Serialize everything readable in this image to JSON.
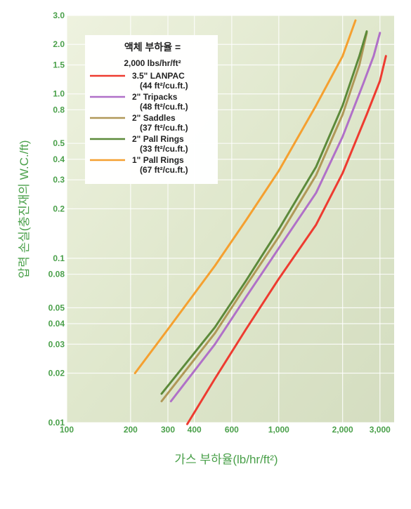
{
  "chart_data": {
    "type": "line",
    "xlabel": "가스 부하율(lb/hr/ft²)",
    "ylabel": "압력 손실(충진재의 W.C./ft)",
    "x_scale": "log",
    "y_scale": "log",
    "xlim": [
      100,
      3500
    ],
    "ylim": [
      0.01,
      3.0
    ],
    "x_ticks": [
      {
        "value": 100,
        "label": "100"
      },
      {
        "value": 200,
        "label": "200"
      },
      {
        "value": 300,
        "label": "300"
      },
      {
        "value": 400,
        "label": "400"
      },
      {
        "value": 600,
        "label": "600"
      },
      {
        "value": 1000,
        "label": "1,000"
      },
      {
        "value": 2000,
        "label": "2,000"
      },
      {
        "value": 3000,
        "label": "3,000"
      }
    ],
    "y_ticks": [
      {
        "value": 3.0,
        "label": "3.0"
      },
      {
        "value": 2.0,
        "label": "2.0"
      },
      {
        "value": 1.5,
        "label": "1.5"
      },
      {
        "value": 1.0,
        "label": "1.0"
      },
      {
        "value": 0.8,
        "label": "0.8"
      },
      {
        "value": 0.5,
        "label": "0.5"
      },
      {
        "value": 0.4,
        "label": "0.4"
      },
      {
        "value": 0.3,
        "label": "0.3"
      },
      {
        "value": 0.2,
        "label": "0.2"
      },
      {
        "value": 0.1,
        "label": "0.1"
      },
      {
        "value": 0.08,
        "label": "0.08"
      },
      {
        "value": 0.05,
        "label": "0.05"
      },
      {
        "value": 0.04,
        "label": "0.04"
      },
      {
        "value": 0.03,
        "label": "0.03"
      },
      {
        "value": 0.02,
        "label": "0.02"
      },
      {
        "value": 0.01,
        "label": "0.01"
      }
    ],
    "grid": true,
    "legend": {
      "title_line1": "액체 부하율 =",
      "title_line2": "2,000 lbs/hr/ft²",
      "position": "top-left"
    },
    "series": [
      {
        "name": "3.5\" LANPAC",
        "subtitle": "(44 ft²/cu.ft.)",
        "color": "#ee3b30",
        "points": [
          [
            370,
            0.0098
          ],
          [
            500,
            0.0185
          ],
          [
            700,
            0.037
          ],
          [
            1000,
            0.075
          ],
          [
            1500,
            0.16
          ],
          [
            2000,
            0.33
          ],
          [
            2600,
            0.75
          ],
          [
            3000,
            1.2
          ],
          [
            3200,
            1.7
          ]
        ]
      },
      {
        "name": "2\" Tripacks",
        "subtitle": "(48 ft²/cu.ft.)",
        "color": "#b070c8",
        "points": [
          [
            310,
            0.0135
          ],
          [
            500,
            0.03
          ],
          [
            700,
            0.058
          ],
          [
            1000,
            0.115
          ],
          [
            1500,
            0.25
          ],
          [
            2000,
            0.55
          ],
          [
            2500,
            1.15
          ],
          [
            2800,
            1.7
          ],
          [
            3000,
            2.35
          ]
        ]
      },
      {
        "name": "2\" Saddles",
        "subtitle": "(37 ft²/cu.ft.)",
        "color": "#b09858",
        "points": [
          [
            280,
            0.0135
          ],
          [
            500,
            0.035
          ],
          [
            700,
            0.068
          ],
          [
            1000,
            0.135
          ],
          [
            1500,
            0.32
          ],
          [
            2000,
            0.75
          ],
          [
            2400,
            1.5
          ],
          [
            2600,
            2.35
          ]
        ]
      },
      {
        "name": "2\" Pall Rings",
        "subtitle": "(33 ft²/cu.ft.)",
        "color": "#5c8a3a",
        "points": [
          [
            280,
            0.015
          ],
          [
            500,
            0.038
          ],
          [
            700,
            0.073
          ],
          [
            1000,
            0.15
          ],
          [
            1500,
            0.36
          ],
          [
            2000,
            0.85
          ],
          [
            2400,
            1.7
          ],
          [
            2600,
            2.4
          ]
        ]
      },
      {
        "name": "1\" Pall Rings",
        "subtitle": "(67 ft²/cu.ft.)",
        "color": "#f5a030",
        "points": [
          [
            210,
            0.02
          ],
          [
            300,
            0.037
          ],
          [
            500,
            0.09
          ],
          [
            700,
            0.17
          ],
          [
            1000,
            0.34
          ],
          [
            1500,
            0.85
          ],
          [
            2000,
            1.7
          ],
          [
            2300,
            2.8
          ]
        ]
      }
    ]
  }
}
